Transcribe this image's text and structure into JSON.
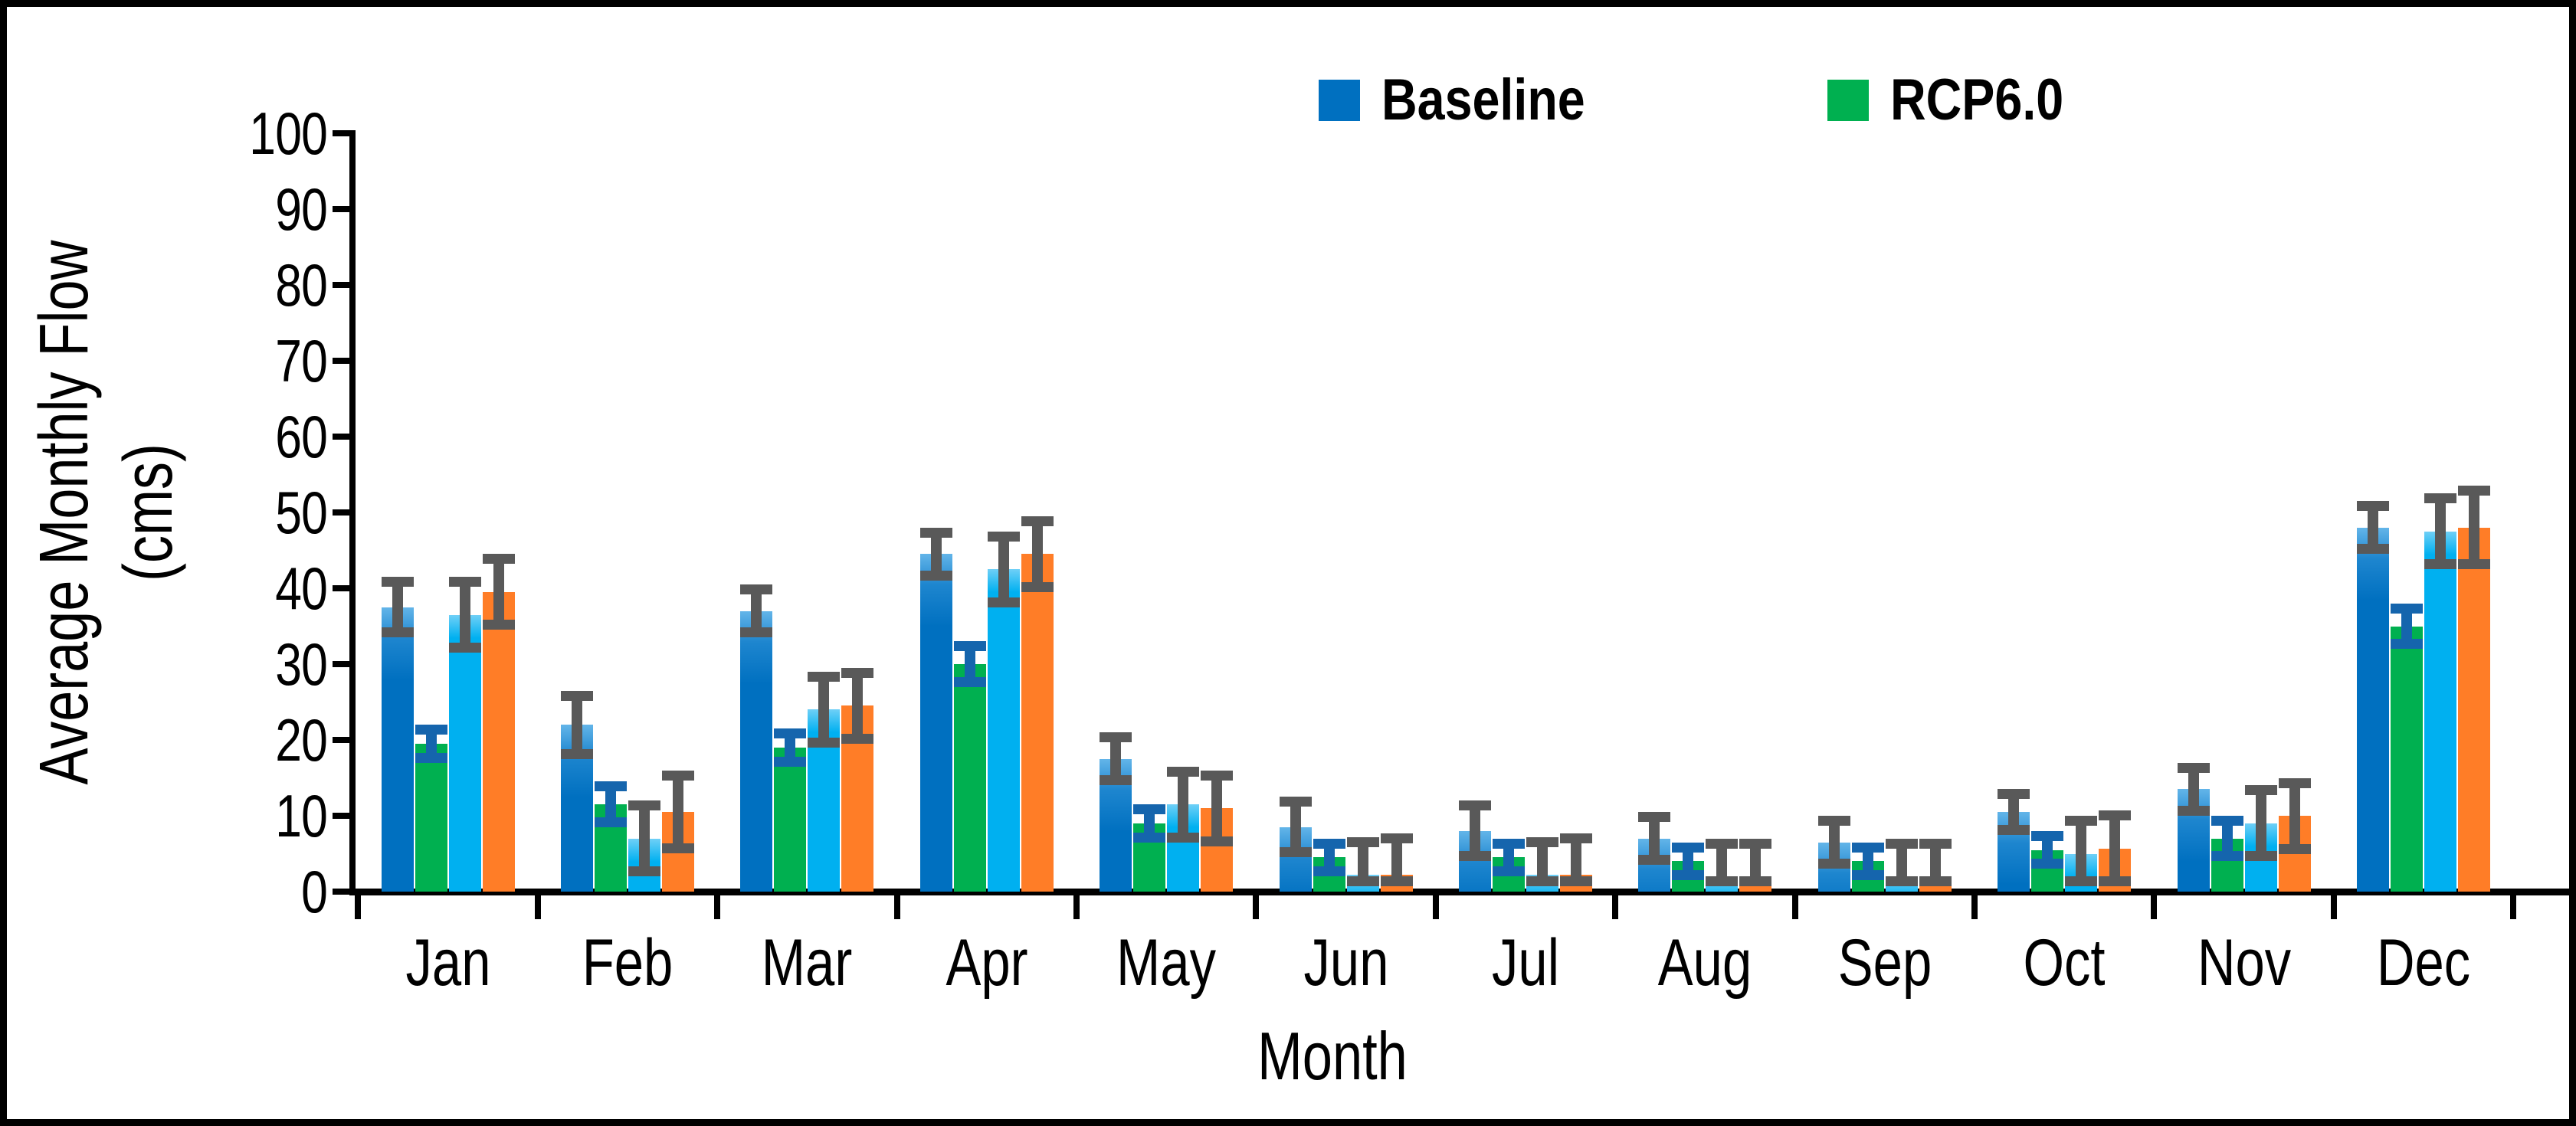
{
  "chart_data": {
    "type": "bar",
    "title": "",
    "ylabel": "Average Monthly Flow (cms)",
    "ylabel_lines": [
      "Average Monthly Flow",
      "(cms)"
    ],
    "xlabel": "Month",
    "ylim": [
      0,
      100
    ],
    "ytick_step": 10,
    "yticks": [
      0,
      10,
      20,
      30,
      40,
      50,
      60,
      70,
      80,
      90,
      100
    ],
    "grid": false,
    "legend_position": "top",
    "error_bars": true,
    "categories": [
      "Jan",
      "Feb",
      "Mar",
      "Apr",
      "May",
      "Jun",
      "Jul",
      "Aug",
      "Sep",
      "Oct",
      "Nov",
      "Dec"
    ],
    "legend": [
      {
        "label": "Baseline",
        "color": "#0070C0"
      },
      {
        "label": "RCP6.0",
        "color": "#00B050"
      }
    ],
    "series": [
      {
        "name": "Baseline",
        "color": "#0070C0",
        "error_color": "#595959",
        "in_legend": true,
        "values": [
          37.5,
          22,
          37,
          44.5,
          17.5,
          8.5,
          8,
          7,
          6.5,
          10.5,
          13.5,
          48
        ],
        "errors": [
          4,
          4.5,
          3.5,
          3.5,
          3.5,
          4,
          4,
          3.5,
          3.5,
          3,
          3.5,
          3.5
        ]
      },
      {
        "name": "RCP6.0",
        "color": "#00B050",
        "error_color": "#1565AD",
        "in_legend": true,
        "values": [
          19.5,
          11.5,
          19,
          30,
          9,
          4.5,
          4.5,
          4,
          4,
          5.5,
          7,
          35
        ],
        "errors": [
          2.5,
          3,
          2.5,
          3,
          2.5,
          2.5,
          2.5,
          2.5,
          2.5,
          2.5,
          3,
          3
        ]
      },
      {
        "name": "",
        "color": "#00B0F0",
        "error_color": "#595959",
        "in_legend": false,
        "values": [
          36.5,
          7,
          24,
          42.5,
          11.5,
          2.2,
          2.2,
          2,
          2,
          5,
          9,
          47.5
        ],
        "errors": [
          5,
          5,
          5,
          5,
          5,
          5,
          5,
          5,
          5,
          5,
          5,
          5
        ]
      },
      {
        "name": "",
        "color": "#FF7D27",
        "error_color": "#595959",
        "in_legend": false,
        "values": [
          39.5,
          10.5,
          24.5,
          44.5,
          11,
          2.2,
          2.2,
          2,
          2,
          5.7,
          10,
          48
        ],
        "errors": [
          5,
          5.5,
          5,
          5,
          5,
          5.5,
          5.5,
          5,
          5,
          5,
          5,
          5.5
        ]
      }
    ]
  }
}
